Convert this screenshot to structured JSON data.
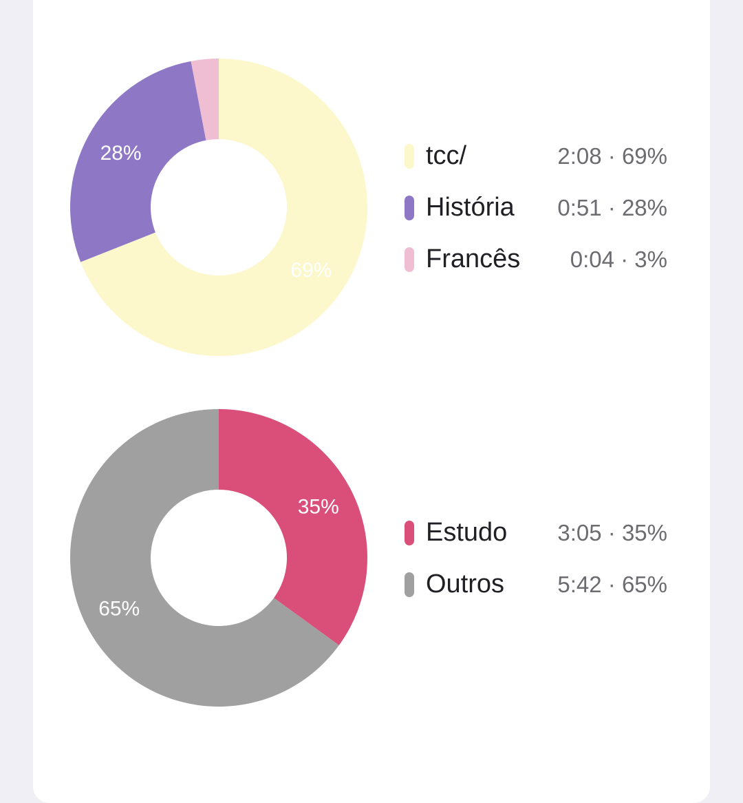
{
  "chart_data": [
    {
      "type": "pie",
      "categories": [
        "tcc/",
        "História",
        "Francês"
      ],
      "values": [
        69,
        28,
        3
      ],
      "times": [
        "2:08",
        "0:51",
        "0:04"
      ],
      "colors": [
        "#fcf8cc",
        "#8e78c6",
        "#f0bed3"
      ],
      "slice_labels": [
        "69%",
        "28%",
        ""
      ],
      "legend": [
        {
          "label": "tcc/",
          "value": "2:08 · 69%"
        },
        {
          "label": "História",
          "value": "0:51 · 28%"
        },
        {
          "label": "Francês",
          "value": "0:04 · 3%"
        }
      ]
    },
    {
      "type": "pie",
      "categories": [
        "Estudo",
        "Outros"
      ],
      "values": [
        35,
        65
      ],
      "times": [
        "3:05",
        "5:42"
      ],
      "colors": [
        "#da4f7a",
        "#a0a0a0"
      ],
      "slice_labels": [
        "35%",
        "65%"
      ],
      "legend": [
        {
          "label": "Estudo",
          "value": "3:05 · 35%"
        },
        {
          "label": "Outros",
          "value": "5:42 · 65%"
        }
      ]
    }
  ]
}
